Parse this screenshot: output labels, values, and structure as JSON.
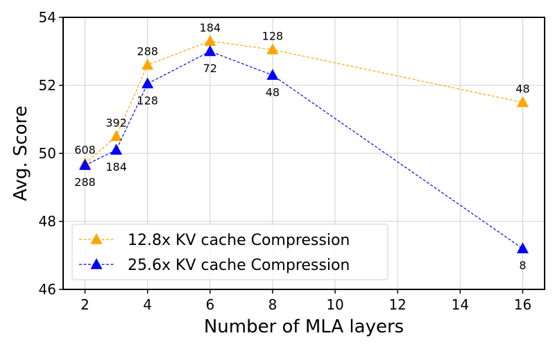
{
  "chart_data": {
    "type": "line",
    "title": "",
    "xlabel": "Number of MLA layers",
    "ylabel": "Avg. Score",
    "xlim": [
      1.3,
      16.7
    ],
    "ylim": [
      46,
      54
    ],
    "xticks": [
      "2",
      "4",
      "6",
      "8",
      "10",
      "12",
      "14",
      "16"
    ],
    "yticks": [
      "46",
      "48",
      "50",
      "52",
      "54"
    ],
    "grid": true,
    "legend_position": "lower-left",
    "series": [
      {
        "name": "12.8x KV cache Compression",
        "color": "#FFA500",
        "marker": "triangle",
        "line_style": "dashed",
        "label_side": "above",
        "x": [
          2,
          3,
          4,
          6,
          8,
          16
        ],
        "y": [
          49.7,
          50.5,
          52.6,
          53.3,
          53.05,
          51.5
        ],
        "labels": [
          "608",
          "392",
          "288",
          "184",
          "128",
          "48"
        ]
      },
      {
        "name": "25.6x KV cache Compression",
        "color": "#0000FF",
        "marker": "triangle",
        "line_style": "dashed",
        "label_side": "below",
        "x": [
          2,
          3,
          4,
          6,
          8,
          16
        ],
        "y": [
          49.65,
          50.1,
          52.05,
          53.0,
          52.3,
          47.2
        ],
        "labels": [
          "288",
          "184",
          "128",
          "72",
          "48",
          "8"
        ]
      }
    ]
  }
}
